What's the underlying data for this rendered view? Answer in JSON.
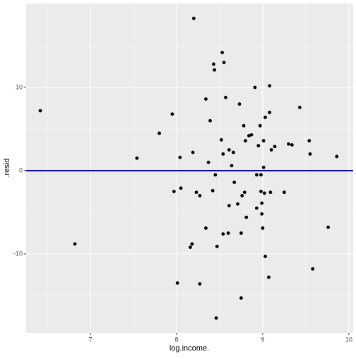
{
  "chart_data": {
    "type": "scatter",
    "x_label": "log.income.",
    "y_label": ".resid",
    "x": [
      6.418,
      6.82,
      7.54,
      7.8,
      7.95,
      7.97,
      8.01,
      8.04,
      8.05,
      8.2,
      8.19,
      8.18,
      8.16,
      8.23,
      8.27,
      8.27,
      8.34,
      8.34,
      8.37,
      8.39,
      8.42,
      8.43,
      8.44,
      8.45,
      8.46,
      8.47,
      8.53,
      8.55,
      8.52,
      8.54,
      8.54,
      8.57,
      8.6,
      8.61,
      8.61,
      8.64,
      8.66,
      8.67,
      8.71,
      8.73,
      8.75,
      8.75,
      8.76,
      8.79,
      8.78,
      8.81,
      8.8,
      8.84,
      8.87,
      8.91,
      8.93,
      8.93,
      8.95,
      8.97,
      8.98,
      8.98,
      8.99,
      8.99,
      9.01,
      9.01,
      9.0,
      9.02,
      9.03,
      9.03,
      9.07,
      9.08,
      9.08,
      9.09,
      9.1,
      9.14,
      9.25,
      9.3,
      9.34,
      9.43,
      9.54,
      9.55,
      9.58,
      9.76,
      9.86
    ],
    "values": [
      7.2,
      -8.8,
      1.5,
      4.5,
      6.8,
      -2.5,
      -13.5,
      1.6,
      -2.1,
      18.3,
      2.2,
      -8.8,
      -9.2,
      -2.6,
      -3.0,
      -13.6,
      8.6,
      -6.9,
      1.0,
      6.0,
      -2.4,
      12.8,
      12.1,
      -0.5,
      -17.7,
      -9.1,
      14.2,
      13.0,
      3.7,
      2.0,
      -7.6,
      8.8,
      -7.5,
      -4.2,
      2.5,
      0.6,
      2.2,
      -1.4,
      -4.0,
      8.0,
      -7.5,
      -15.3,
      -3.0,
      -2.6,
      5.4,
      -5.6,
      3.6,
      4.2,
      4.3,
      10.0,
      -0.5,
      -4.5,
      3.0,
      5.4,
      -0.5,
      -2.5,
      -3.9,
      -5.2,
      3.6,
      0.4,
      -6.9,
      -2.7,
      6.4,
      -10.3,
      -12.8,
      7.0,
      10.2,
      -2.6,
      2.5,
      2.9,
      -2.6,
      3.2,
      3.1,
      7.6,
      3.6,
      2.0,
      -11.8,
      -6.8,
      1.7
    ],
    "color": "#000000",
    "xlim": [
      6.254,
      10.05
    ],
    "ylim": [
      -19.49,
      20.08
    ],
    "xticks": [
      7,
      8,
      9,
      10
    ],
    "yticks": [
      -10,
      0,
      10
    ],
    "x_minor_ticks": [
      6.5,
      7.5,
      8.5,
      9.5
    ],
    "y_minor_ticks": [
      -15,
      -5,
      5,
      15
    ],
    "grid": true,
    "hline": 0,
    "hline_color": "#0000ff"
  }
}
